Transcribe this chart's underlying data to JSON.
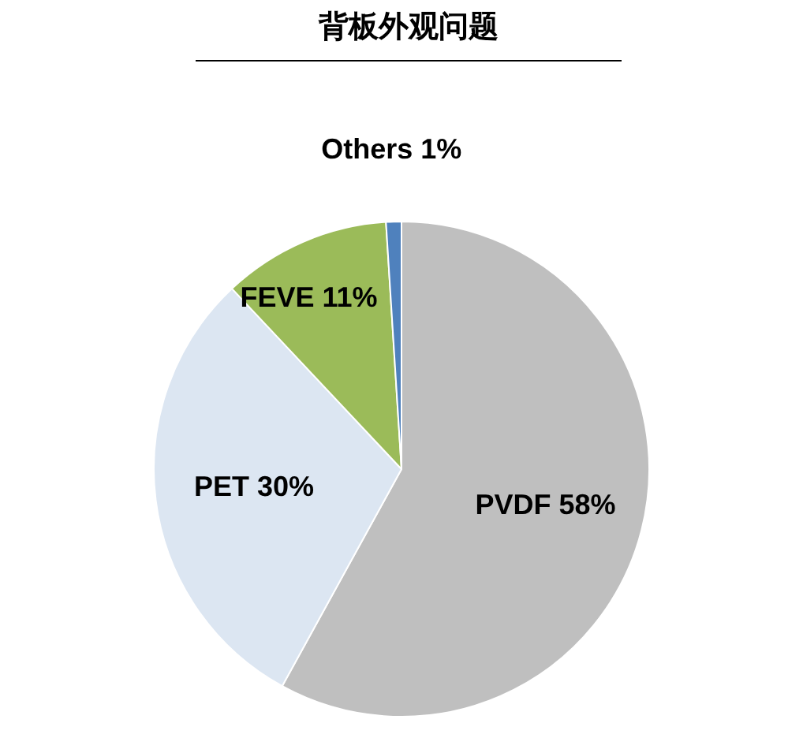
{
  "chart_data": {
    "type": "pie",
    "title": "背板外观问题",
    "categories": [
      "PVDF",
      "PET",
      "FEVE",
      "Others"
    ],
    "values": [
      58,
      30,
      11,
      1
    ],
    "colors": [
      "#bfbfbf",
      "#dce6f2",
      "#9bbb59",
      "#4f81bd"
    ],
    "value_labels": [
      "58%",
      "30%",
      "11%",
      "1%"
    ],
    "legend": false
  }
}
